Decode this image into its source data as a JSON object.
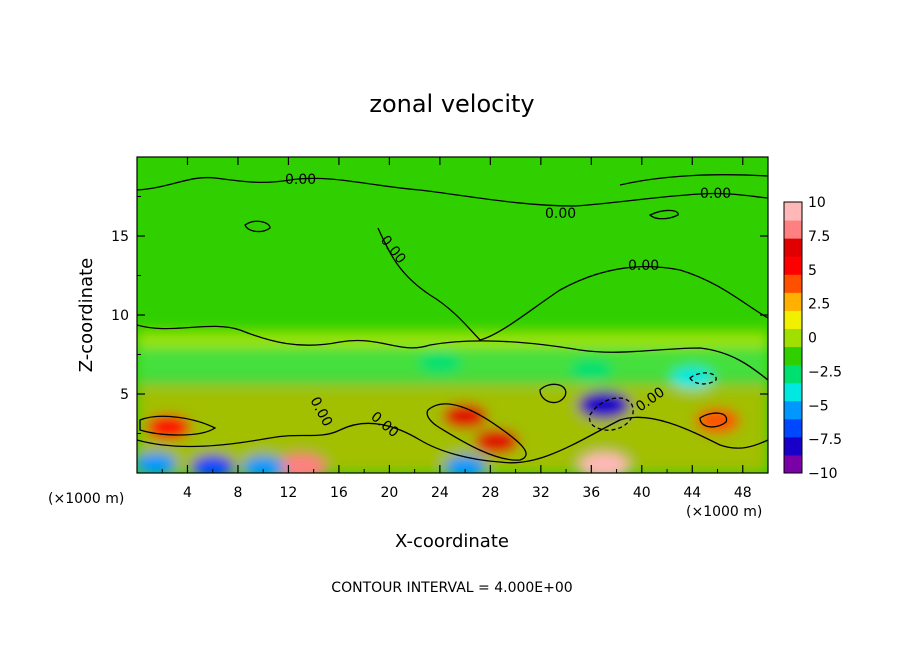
{
  "chart_data": {
    "type": "heatmap",
    "title": "zonal velocity",
    "xlabel": "X-coordinate",
    "ylabel": "Z-coordinate",
    "x_unit_left": "(×1000 m)",
    "x_unit_right": "(×1000 m)",
    "xlim": [
      0,
      50
    ],
    "ylim": [
      0,
      20
    ],
    "x_ticks": [
      4,
      8,
      12,
      16,
      20,
      24,
      28,
      32,
      36,
      40,
      44,
      48
    ],
    "x_tick_labels": [
      "4",
      "8",
      "12",
      "16",
      "20",
      "24",
      "28",
      "32",
      "36",
      "40",
      "44",
      "48"
    ],
    "y_ticks": [
      5,
      10,
      15
    ],
    "y_tick_labels": [
      "5",
      "10",
      "15"
    ],
    "colorbar": {
      "min": -10,
      "max": 10,
      "ticks": [
        10,
        7.5,
        5,
        2.5,
        0,
        -2.5,
        -5,
        -7.5,
        -10
      ],
      "tick_labels": [
        "10",
        "7.5",
        "5",
        "2.5",
        "0",
        "−2.5",
        "−5",
        "−7.5",
        "−10"
      ],
      "colors": [
        "#7a00a8",
        "#1800c8",
        "#0048ff",
        "#0098ff",
        "#00e8e0",
        "#00e070",
        "#30d000",
        "#a0e000",
        "#f0f000",
        "#ffb000",
        "#ff5000",
        "#ff0000",
        "#e00000",
        "#ff8080",
        "#ffb8b8"
      ]
    },
    "contour_interval_text": "CONTOUR INTERVAL = 4.000E+00",
    "contour_labels": [
      "0.00",
      "0.00",
      "0.00",
      "0.00",
      "0.00",
      "0.00",
      "0.00",
      "0.00"
    ],
    "features": [
      {
        "x": 37,
        "z": 4.3,
        "value": -8.5
      },
      {
        "x": 37,
        "z": 0.5,
        "value": 10
      },
      {
        "x": 26,
        "z": 3.6,
        "value": 7
      },
      {
        "x": 28.5,
        "z": 2.0,
        "value": 6
      },
      {
        "x": 2.5,
        "z": 2.9,
        "value": 5
      },
      {
        "x": 13,
        "z": 0.4,
        "value": 8
      },
      {
        "x": 1.5,
        "z": 0.6,
        "value": -6
      },
      {
        "x": 6,
        "z": 0.4,
        "value": -7
      },
      {
        "x": 10,
        "z": 0.4,
        "value": -6
      },
      {
        "x": 26,
        "z": 0.4,
        "value": -6
      },
      {
        "x": 44,
        "z": 6.0,
        "value": -4
      },
      {
        "x": 36,
        "z": 6.5,
        "value": -2.5
      },
      {
        "x": 46,
        "z": 3.3,
        "value": 4
      },
      {
        "x": 24,
        "z": 7.0,
        "value": -3
      }
    ]
  }
}
